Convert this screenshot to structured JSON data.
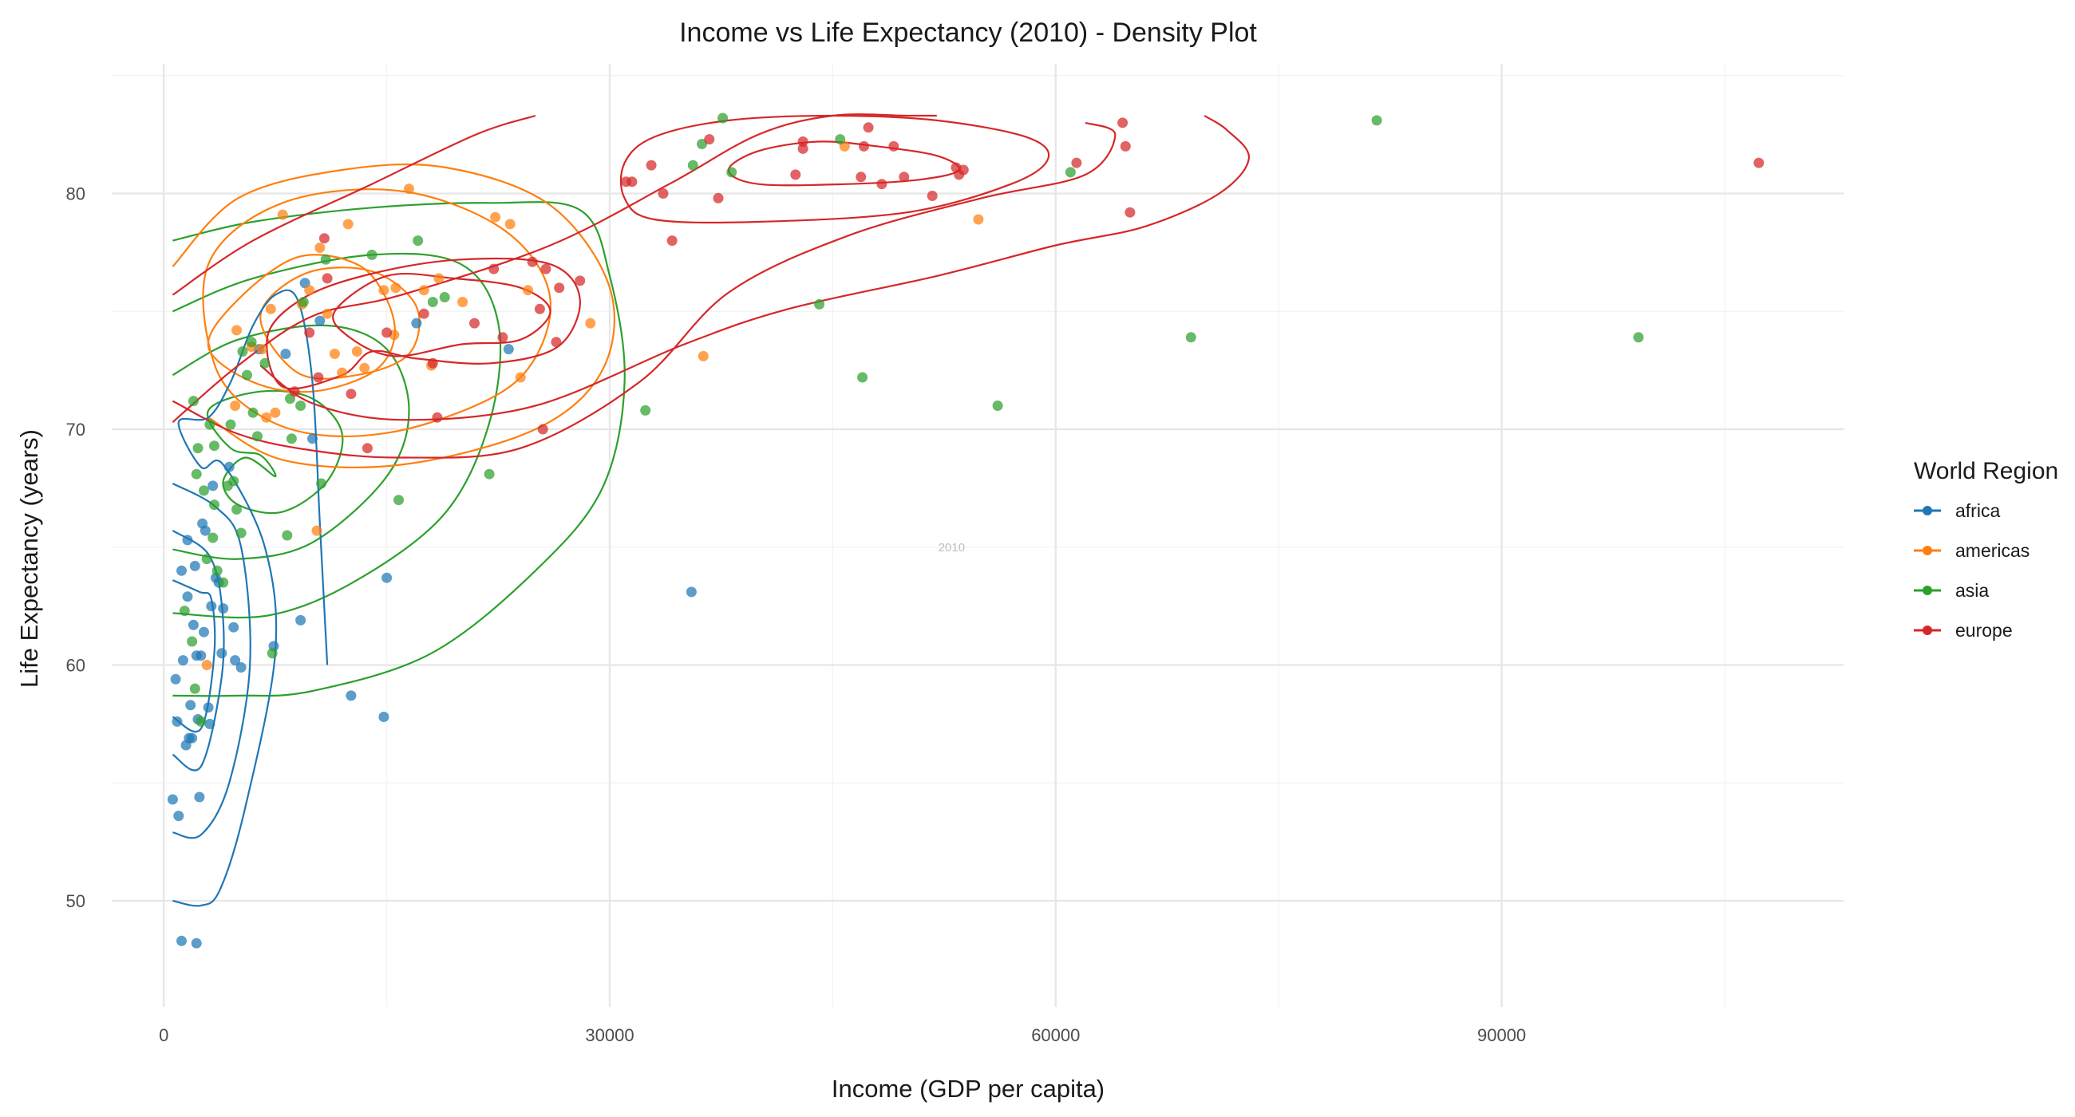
{
  "chart_data": {
    "type": "scatter",
    "title": "Income vs Life Expectancy (2010) - Density Plot",
    "xlabel": "Income (GDP per capita)",
    "ylabel": "Life Expectancy (years)",
    "xlim": [
      -3500,
      113000
    ],
    "ylim": [
      45.5,
      85.5
    ],
    "x_ticks": [
      0,
      30000,
      60000,
      90000
    ],
    "y_ticks": [
      50,
      60,
      70,
      80
    ],
    "grid": true,
    "watermark": "2010",
    "legend": {
      "title": "World Region",
      "position": "right"
    },
    "series": [
      {
        "name": "africa",
        "color": "#1f77b4",
        "points": [
          [
            600,
            54.3
          ],
          [
            900,
            57.6
          ],
          [
            1000,
            53.6
          ],
          [
            1200,
            48.3
          ],
          [
            1300,
            60.2
          ],
          [
            1200,
            64.0
          ],
          [
            1500,
            56.6
          ],
          [
            1600,
            62.9
          ],
          [
            1700,
            56.9
          ],
          [
            1800,
            58.3
          ],
          [
            1900,
            56.9
          ],
          [
            2000,
            61.7
          ],
          [
            2100,
            64.2
          ],
          [
            2200,
            60.4
          ],
          [
            2300,
            57.7
          ],
          [
            2400,
            54.4
          ],
          [
            2500,
            60.4
          ],
          [
            2600,
            66.0
          ],
          [
            2700,
            61.4
          ],
          [
            2800,
            65.7
          ],
          [
            3000,
            58.2
          ],
          [
            3100,
            57.5
          ],
          [
            3200,
            62.5
          ],
          [
            3300,
            67.6
          ],
          [
            3500,
            63.7
          ],
          [
            3700,
            63.5
          ],
          [
            3900,
            60.5
          ],
          [
            4000,
            62.4
          ],
          [
            4400,
            68.4
          ],
          [
            4700,
            61.6
          ],
          [
            4800,
            60.2
          ],
          [
            5200,
            59.9
          ],
          [
            6400,
            73.4
          ],
          [
            7400,
            60.8
          ],
          [
            8200,
            73.2
          ],
          [
            9200,
            61.9
          ],
          [
            9500,
            76.2
          ],
          [
            10000,
            69.6
          ],
          [
            10500,
            74.6
          ],
          [
            12600,
            58.7
          ],
          [
            14800,
            57.8
          ],
          [
            15000,
            63.7
          ],
          [
            17000,
            74.5
          ],
          [
            23200,
            73.4
          ],
          [
            35500,
            63.1
          ],
          [
            2200,
            48.2
          ],
          [
            800,
            59.4
          ],
          [
            1600,
            65.3
          ]
        ]
      },
      {
        "name": "americas",
        "color": "#ff7f0e",
        "points": [
          [
            2900,
            60.0
          ],
          [
            4800,
            71.0
          ],
          [
            4900,
            74.2
          ],
          [
            5900,
            73.5
          ],
          [
            6600,
            73.4
          ],
          [
            6900,
            70.5
          ],
          [
            7200,
            75.1
          ],
          [
            7500,
            70.7
          ],
          [
            8000,
            79.1
          ],
          [
            9300,
            75.3
          ],
          [
            9800,
            75.9
          ],
          [
            10300,
            65.7
          ],
          [
            10500,
            77.7
          ],
          [
            11000,
            74.9
          ],
          [
            11500,
            73.2
          ],
          [
            12000,
            72.4
          ],
          [
            12400,
            78.7
          ],
          [
            13000,
            73.3
          ],
          [
            13500,
            72.6
          ],
          [
            14800,
            75.9
          ],
          [
            15500,
            74.0
          ],
          [
            15600,
            76.0
          ],
          [
            16500,
            80.2
          ],
          [
            17500,
            75.9
          ],
          [
            18000,
            72.7
          ],
          [
            18500,
            76.4
          ],
          [
            20100,
            75.4
          ],
          [
            22300,
            79.0
          ],
          [
            23300,
            78.7
          ],
          [
            24000,
            72.2
          ],
          [
            24500,
            75.9
          ],
          [
            28700,
            74.5
          ],
          [
            36300,
            73.1
          ],
          [
            45800,
            82.0
          ],
          [
            54800,
            78.9
          ]
        ]
      },
      {
        "name": "asia",
        "color": "#2ca02c",
        "points": [
          [
            1400,
            62.3
          ],
          [
            1900,
            61.0
          ],
          [
            2000,
            71.2
          ],
          [
            2100,
            59.0
          ],
          [
            2200,
            68.1
          ],
          [
            2300,
            69.2
          ],
          [
            2500,
            57.6
          ],
          [
            2700,
            67.4
          ],
          [
            2900,
            64.5
          ],
          [
            3100,
            70.2
          ],
          [
            3300,
            65.4
          ],
          [
            3400,
            69.3
          ],
          [
            3400,
            66.8
          ],
          [
            3600,
            64.0
          ],
          [
            4000,
            63.5
          ],
          [
            4300,
            67.6
          ],
          [
            4500,
            70.2
          ],
          [
            4700,
            67.8
          ],
          [
            4900,
            66.6
          ],
          [
            5200,
            65.6
          ],
          [
            5300,
            73.3
          ],
          [
            5600,
            72.3
          ],
          [
            5900,
            73.7
          ],
          [
            6000,
            70.7
          ],
          [
            6300,
            69.7
          ],
          [
            6800,
            72.8
          ],
          [
            7300,
            60.5
          ],
          [
            8300,
            65.5
          ],
          [
            8500,
            71.3
          ],
          [
            8600,
            69.6
          ],
          [
            9200,
            71.0
          ],
          [
            9400,
            75.4
          ],
          [
            10600,
            67.7
          ],
          [
            10900,
            77.2
          ],
          [
            14000,
            77.4
          ],
          [
            15800,
            67.0
          ],
          [
            17100,
            78.0
          ],
          [
            18100,
            75.4
          ],
          [
            18900,
            75.6
          ],
          [
            21900,
            68.1
          ],
          [
            32400,
            70.8
          ],
          [
            35600,
            81.2
          ],
          [
            36200,
            82.1
          ],
          [
            37600,
            83.2
          ],
          [
            38200,
            80.9
          ],
          [
            44100,
            75.3
          ],
          [
            45500,
            82.3
          ],
          [
            47000,
            72.2
          ],
          [
            56100,
            71.0
          ],
          [
            61000,
            80.9
          ],
          [
            69100,
            73.9
          ],
          [
            81600,
            83.1
          ],
          [
            99200,
            73.9
          ]
        ]
      },
      {
        "name": "europe",
        "color": "#d62728",
        "points": [
          [
            8800,
            71.6
          ],
          [
            9800,
            74.1
          ],
          [
            10400,
            72.2
          ],
          [
            10800,
            78.1
          ],
          [
            11000,
            76.4
          ],
          [
            12600,
            71.5
          ],
          [
            13700,
            69.2
          ],
          [
            15000,
            74.1
          ],
          [
            17500,
            74.9
          ],
          [
            18100,
            72.8
          ],
          [
            18400,
            70.5
          ],
          [
            20900,
            74.5
          ],
          [
            22200,
            76.8
          ],
          [
            22800,
            73.9
          ],
          [
            24800,
            77.1
          ],
          [
            25300,
            75.1
          ],
          [
            25500,
            70.0
          ],
          [
            25700,
            76.8
          ],
          [
            26400,
            73.7
          ],
          [
            26600,
            76.0
          ],
          [
            28000,
            76.3
          ],
          [
            31100,
            80.5
          ],
          [
            31500,
            80.5
          ],
          [
            32800,
            81.2
          ],
          [
            33600,
            80.0
          ],
          [
            34200,
            78.0
          ],
          [
            36700,
            82.3
          ],
          [
            37300,
            79.8
          ],
          [
            42500,
            80.8
          ],
          [
            43000,
            81.9
          ],
          [
            43000,
            82.2
          ],
          [
            46900,
            80.7
          ],
          [
            47100,
            82.0
          ],
          [
            47400,
            82.8
          ],
          [
            48300,
            80.4
          ],
          [
            49100,
            82.0
          ],
          [
            49800,
            80.7
          ],
          [
            51700,
            79.9
          ],
          [
            53300,
            81.1
          ],
          [
            53500,
            80.8
          ],
          [
            53800,
            81.0
          ],
          [
            61400,
            81.3
          ],
          [
            64500,
            83.0
          ],
          [
            64700,
            82.0
          ],
          [
            65000,
            79.2
          ],
          [
            107300,
            81.3
          ]
        ]
      }
    ]
  }
}
